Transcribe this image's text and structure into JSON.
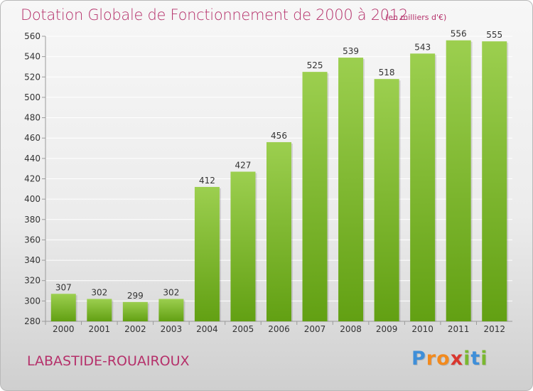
{
  "header": {
    "title": "Dotation Globale de Fonctionnement de 2000 à 2012",
    "unit_note": "(en milliers d'€)"
  },
  "footer": {
    "commune": "LABASTIDE-ROUAIROUX",
    "logo_letters": [
      "P",
      "r",
      "o",
      "x",
      "i",
      "t",
      "i"
    ],
    "logo_colors": [
      "#3f8fd9",
      "#f28a1e",
      "#f28a1e",
      "#d9362e",
      "#7ab82f",
      "#3f8fd9",
      "#7ab82f"
    ]
  },
  "chart_data": {
    "type": "bar",
    "categories": [
      "2000",
      "2001",
      "2002",
      "2003",
      "2004",
      "2005",
      "2006",
      "2007",
      "2008",
      "2009",
      "2010",
      "2011",
      "2012"
    ],
    "values": [
      307,
      302,
      299,
      302,
      412,
      427,
      456,
      525,
      539,
      518,
      543,
      556,
      555
    ],
    "ylim": [
      280,
      560
    ],
    "yticks": [
      280,
      300,
      320,
      340,
      360,
      380,
      400,
      420,
      440,
      460,
      480,
      500,
      520,
      540,
      560
    ],
    "grid": true,
    "bar_color_top": "#9ccf4f",
    "bar_color_bottom": "#62a013",
    "grid_color": "#ffffff"
  }
}
